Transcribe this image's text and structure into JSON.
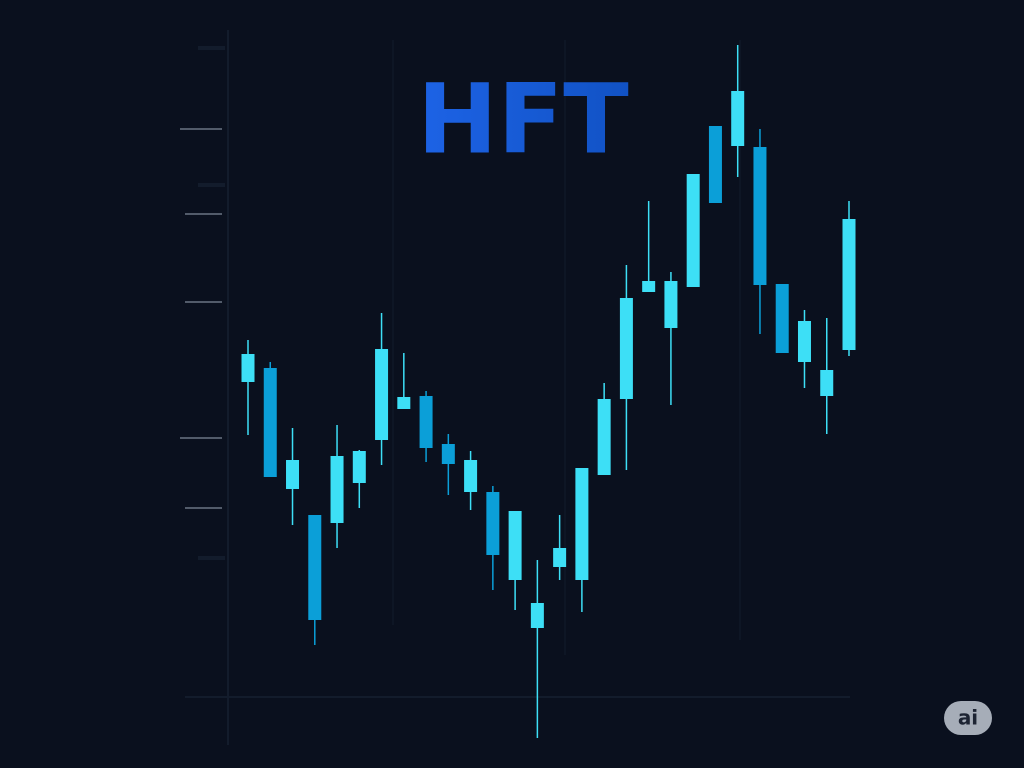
{
  "chart_data": {
    "type": "candlestick",
    "title": "HFT",
    "badge": "ai",
    "open": [
      358,
      372,
      251,
      225,
      217,
      257,
      300,
      331,
      344,
      296,
      248,
      248,
      160,
      112,
      173,
      160,
      265,
      341,
      448,
      412,
      453,
      614,
      594,
      593,
      456,
      378,
      344,
      390
    ],
    "high": [
      400,
      378,
      312,
      225,
      315,
      290,
      427,
      387,
      349,
      306,
      289,
      254,
      229,
      180,
      225,
      272,
      357,
      475,
      539,
      468,
      566,
      614,
      695,
      611,
      456,
      430,
      422,
      539
    ],
    "low": [
      305,
      263,
      215,
      95,
      192,
      232,
      275,
      331,
      278,
      245,
      230,
      150,
      130,
      2,
      160,
      128,
      265,
      270,
      448,
      335,
      453,
      537,
      563,
      406,
      387,
      352,
      306,
      384
    ],
    "close": [
      386,
      263,
      280,
      120,
      284,
      289,
      391,
      343,
      292,
      276,
      280,
      185,
      229,
      137,
      192,
      272,
      341,
      442,
      459,
      459,
      566,
      537,
      649,
      455,
      387,
      419,
      370,
      521
    ],
    "up_color": "#3ddff6",
    "down_color": "#0b9fd8",
    "ylim": [
      0,
      700
    ]
  }
}
